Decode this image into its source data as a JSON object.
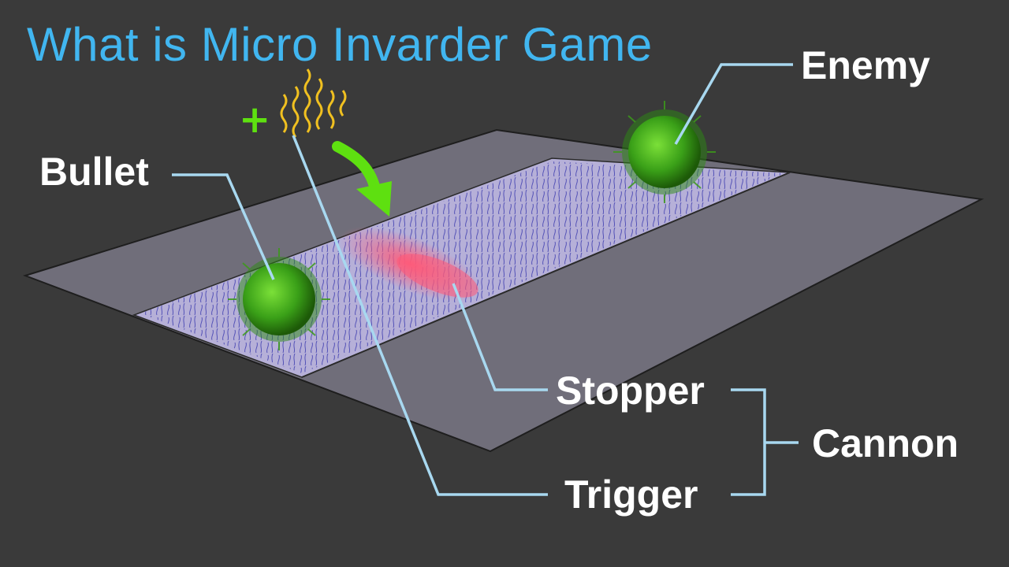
{
  "title": "What is Micro Invarder Game",
  "labels": {
    "enemy": "Enemy",
    "bullet": "Bullet",
    "stopper": "Stopper",
    "trigger": "Trigger",
    "cannon": "Cannon"
  },
  "trigger_symbol": "+",
  "colors": {
    "background": "#3a3a3a",
    "title": "#41b6f0",
    "label": "#ffffff",
    "leader_line": "#a8d8f0",
    "board": "#706e7a",
    "track": "#b6b0d8",
    "fibers": "#2a2aa8",
    "stopper_zone": "#ff5a78",
    "sphere": "#3aa018",
    "trigger_molecules": "#f0c020",
    "arrow": "#5ee010"
  }
}
